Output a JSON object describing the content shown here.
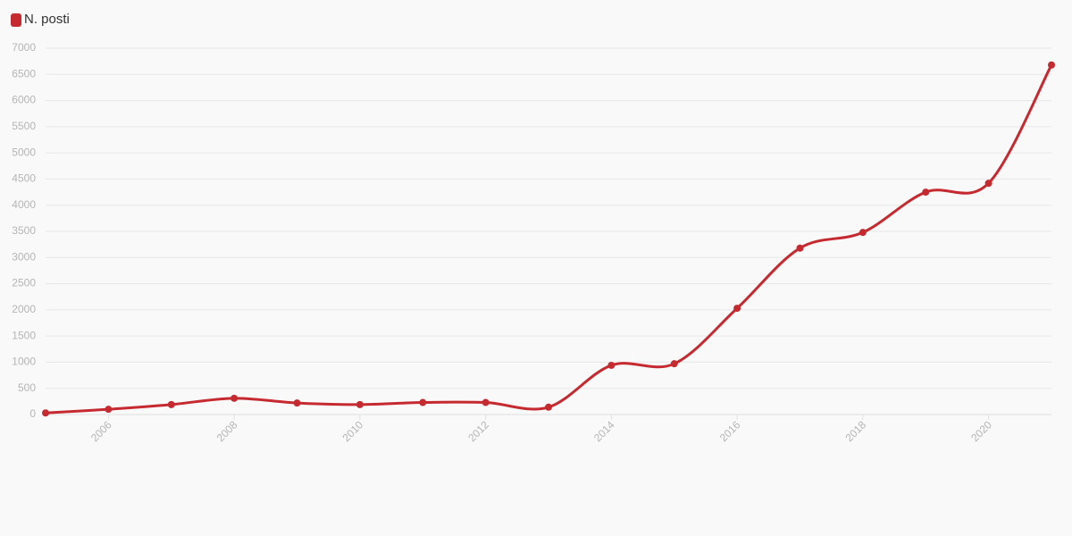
{
  "chart_data": {
    "type": "line",
    "x": [
      2005,
      2006,
      2007,
      2008,
      2009,
      2010,
      2011,
      2012,
      2013,
      2014,
      2015,
      2016,
      2017,
      2018,
      2019,
      2020,
      2021
    ],
    "series": [
      {
        "name": "N. posti",
        "color": "#c62a31",
        "values": [
          30,
          100,
          190,
          310,
          220,
          190,
          230,
          230,
          140,
          940,
          970,
          2030,
          3180,
          3480,
          4250,
          4420,
          6680
        ]
      }
    ],
    "xlim": [
      2005,
      2021
    ],
    "xticks": [
      2006,
      2008,
      2010,
      2012,
      2014,
      2016,
      2018,
      2020
    ],
    "ylim": [
      0,
      7000
    ],
    "yticks": [
      0,
      500,
      1000,
      1500,
      2000,
      2500,
      3000,
      3500,
      4000,
      4500,
      5000,
      5500,
      6000,
      6500,
      7000
    ],
    "grid": true,
    "legend": "top-left"
  }
}
